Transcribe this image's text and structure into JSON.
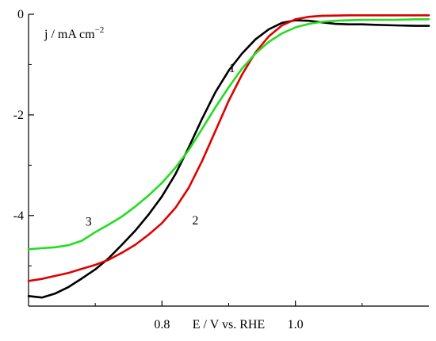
{
  "chart_data": {
    "type": "line",
    "xlabel": "E / V vs. RHE",
    "ylabel": "j / mA cm",
    "ylabel_superscript": "−2",
    "xlim": [
      0.6,
      1.2
    ],
    "ylim": [
      -5.8,
      0.0
    ],
    "x_ticks": [
      0.8,
      1.0
    ],
    "x_tick_labels": [
      "0.8",
      "1.0"
    ],
    "y_ticks": [
      0,
      -2,
      -4
    ],
    "y_tick_labels": [
      "0",
      "-2",
      "-4"
    ],
    "grid": false,
    "legend": "none",
    "series": [
      {
        "curve_label": "1",
        "color": "#000000",
        "points": [
          [
            0.6,
            -5.6
          ],
          [
            0.62,
            -5.63
          ],
          [
            0.64,
            -5.55
          ],
          [
            0.66,
            -5.42
          ],
          [
            0.68,
            -5.25
          ],
          [
            0.7,
            -5.07
          ],
          [
            0.72,
            -4.85
          ],
          [
            0.74,
            -4.58
          ],
          [
            0.76,
            -4.3
          ],
          [
            0.78,
            -3.98
          ],
          [
            0.8,
            -3.62
          ],
          [
            0.82,
            -3.18
          ],
          [
            0.84,
            -2.65
          ],
          [
            0.86,
            -2.08
          ],
          [
            0.88,
            -1.55
          ],
          [
            0.9,
            -1.12
          ],
          [
            0.92,
            -0.78
          ],
          [
            0.94,
            -0.5
          ],
          [
            0.96,
            -0.3
          ],
          [
            0.98,
            -0.17
          ],
          [
            1.0,
            -0.12
          ],
          [
            1.02,
            -0.13
          ],
          [
            1.04,
            -0.16
          ],
          [
            1.06,
            -0.19
          ],
          [
            1.08,
            -0.2
          ],
          [
            1.1,
            -0.2
          ],
          [
            1.12,
            -0.21
          ],
          [
            1.15,
            -0.22
          ],
          [
            1.18,
            -0.23
          ],
          [
            1.2,
            -0.23
          ]
        ]
      },
      {
        "curve_label": "2",
        "color": "#e00000",
        "points": [
          [
            0.6,
            -5.3
          ],
          [
            0.62,
            -5.26
          ],
          [
            0.64,
            -5.2
          ],
          [
            0.66,
            -5.14
          ],
          [
            0.68,
            -5.06
          ],
          [
            0.7,
            -4.98
          ],
          [
            0.72,
            -4.88
          ],
          [
            0.74,
            -4.74
          ],
          [
            0.76,
            -4.58
          ],
          [
            0.78,
            -4.38
          ],
          [
            0.8,
            -4.15
          ],
          [
            0.82,
            -3.85
          ],
          [
            0.84,
            -3.45
          ],
          [
            0.86,
            -2.92
          ],
          [
            0.88,
            -2.32
          ],
          [
            0.9,
            -1.72
          ],
          [
            0.92,
            -1.2
          ],
          [
            0.94,
            -0.76
          ],
          [
            0.96,
            -0.44
          ],
          [
            0.98,
            -0.22
          ],
          [
            1.0,
            -0.1
          ],
          [
            1.02,
            -0.05
          ],
          [
            1.04,
            -0.03
          ],
          [
            1.08,
            -0.02
          ],
          [
            1.12,
            -0.02
          ],
          [
            1.16,
            -0.02
          ],
          [
            1.2,
            -0.02
          ]
        ]
      },
      {
        "curve_label": "3",
        "color": "#22dd22",
        "points": [
          [
            0.6,
            -4.67
          ],
          [
            0.62,
            -4.65
          ],
          [
            0.64,
            -4.63
          ],
          [
            0.66,
            -4.59
          ],
          [
            0.68,
            -4.5
          ],
          [
            0.7,
            -4.33
          ],
          [
            0.72,
            -4.18
          ],
          [
            0.74,
            -4.02
          ],
          [
            0.76,
            -3.82
          ],
          [
            0.78,
            -3.6
          ],
          [
            0.8,
            -3.35
          ],
          [
            0.82,
            -3.05
          ],
          [
            0.84,
            -2.7
          ],
          [
            0.86,
            -2.28
          ],
          [
            0.88,
            -1.85
          ],
          [
            0.9,
            -1.45
          ],
          [
            0.92,
            -1.08
          ],
          [
            0.94,
            -0.78
          ],
          [
            0.96,
            -0.55
          ],
          [
            0.98,
            -0.38
          ],
          [
            1.0,
            -0.26
          ],
          [
            1.02,
            -0.19
          ],
          [
            1.04,
            -0.15
          ],
          [
            1.06,
            -0.13
          ],
          [
            1.08,
            -0.12
          ],
          [
            1.1,
            -0.11
          ],
          [
            1.12,
            -0.11
          ],
          [
            1.15,
            -0.11
          ],
          [
            1.18,
            -0.1
          ],
          [
            1.2,
            -0.1
          ]
        ]
      }
    ]
  }
}
